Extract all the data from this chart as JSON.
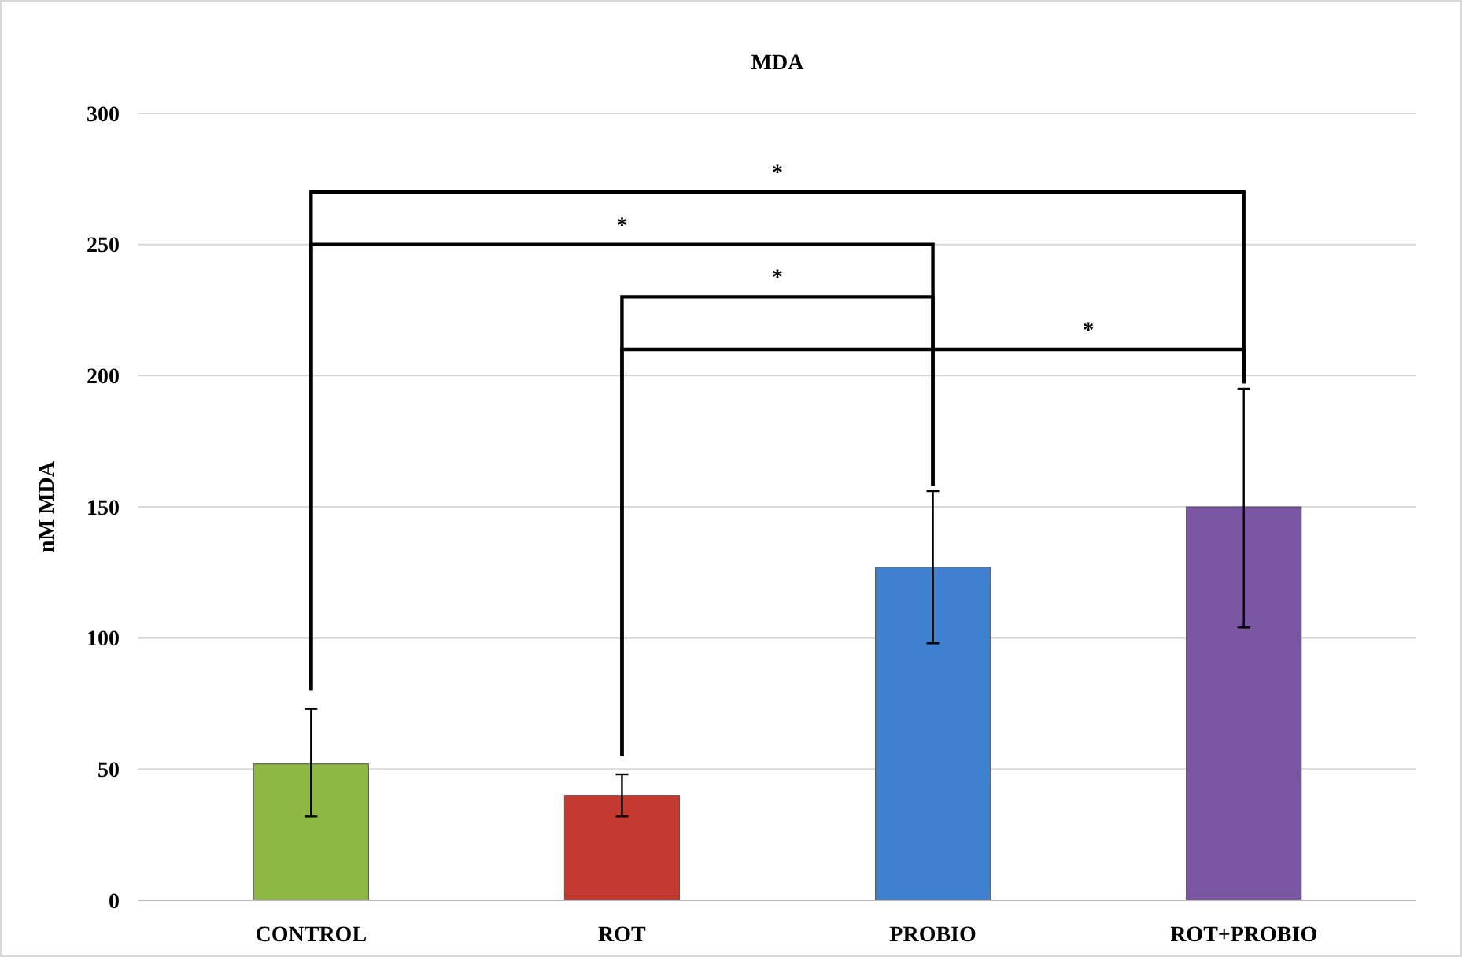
{
  "chart_data": {
    "type": "bar",
    "title": "MDA",
    "ylabel": "nM MDA",
    "categories": [
      "CONTROL",
      "ROT",
      "PROBIO",
      "ROT+PROBIO"
    ],
    "values": [
      52,
      40,
      127,
      150
    ],
    "colors": [
      "#8db843",
      "#c43a30",
      "#3f80d0",
      "#7b57a3"
    ],
    "errors": [
      [
        32,
        73
      ],
      [
        32,
        48
      ],
      [
        98,
        156
      ],
      [
        104,
        195
      ]
    ],
    "ylim": [
      0,
      300
    ],
    "yticks": [
      0,
      50,
      100,
      150,
      200,
      250,
      300
    ],
    "grid": "y",
    "annotations": [
      "*",
      "*",
      "*",
      "*"
    ]
  }
}
